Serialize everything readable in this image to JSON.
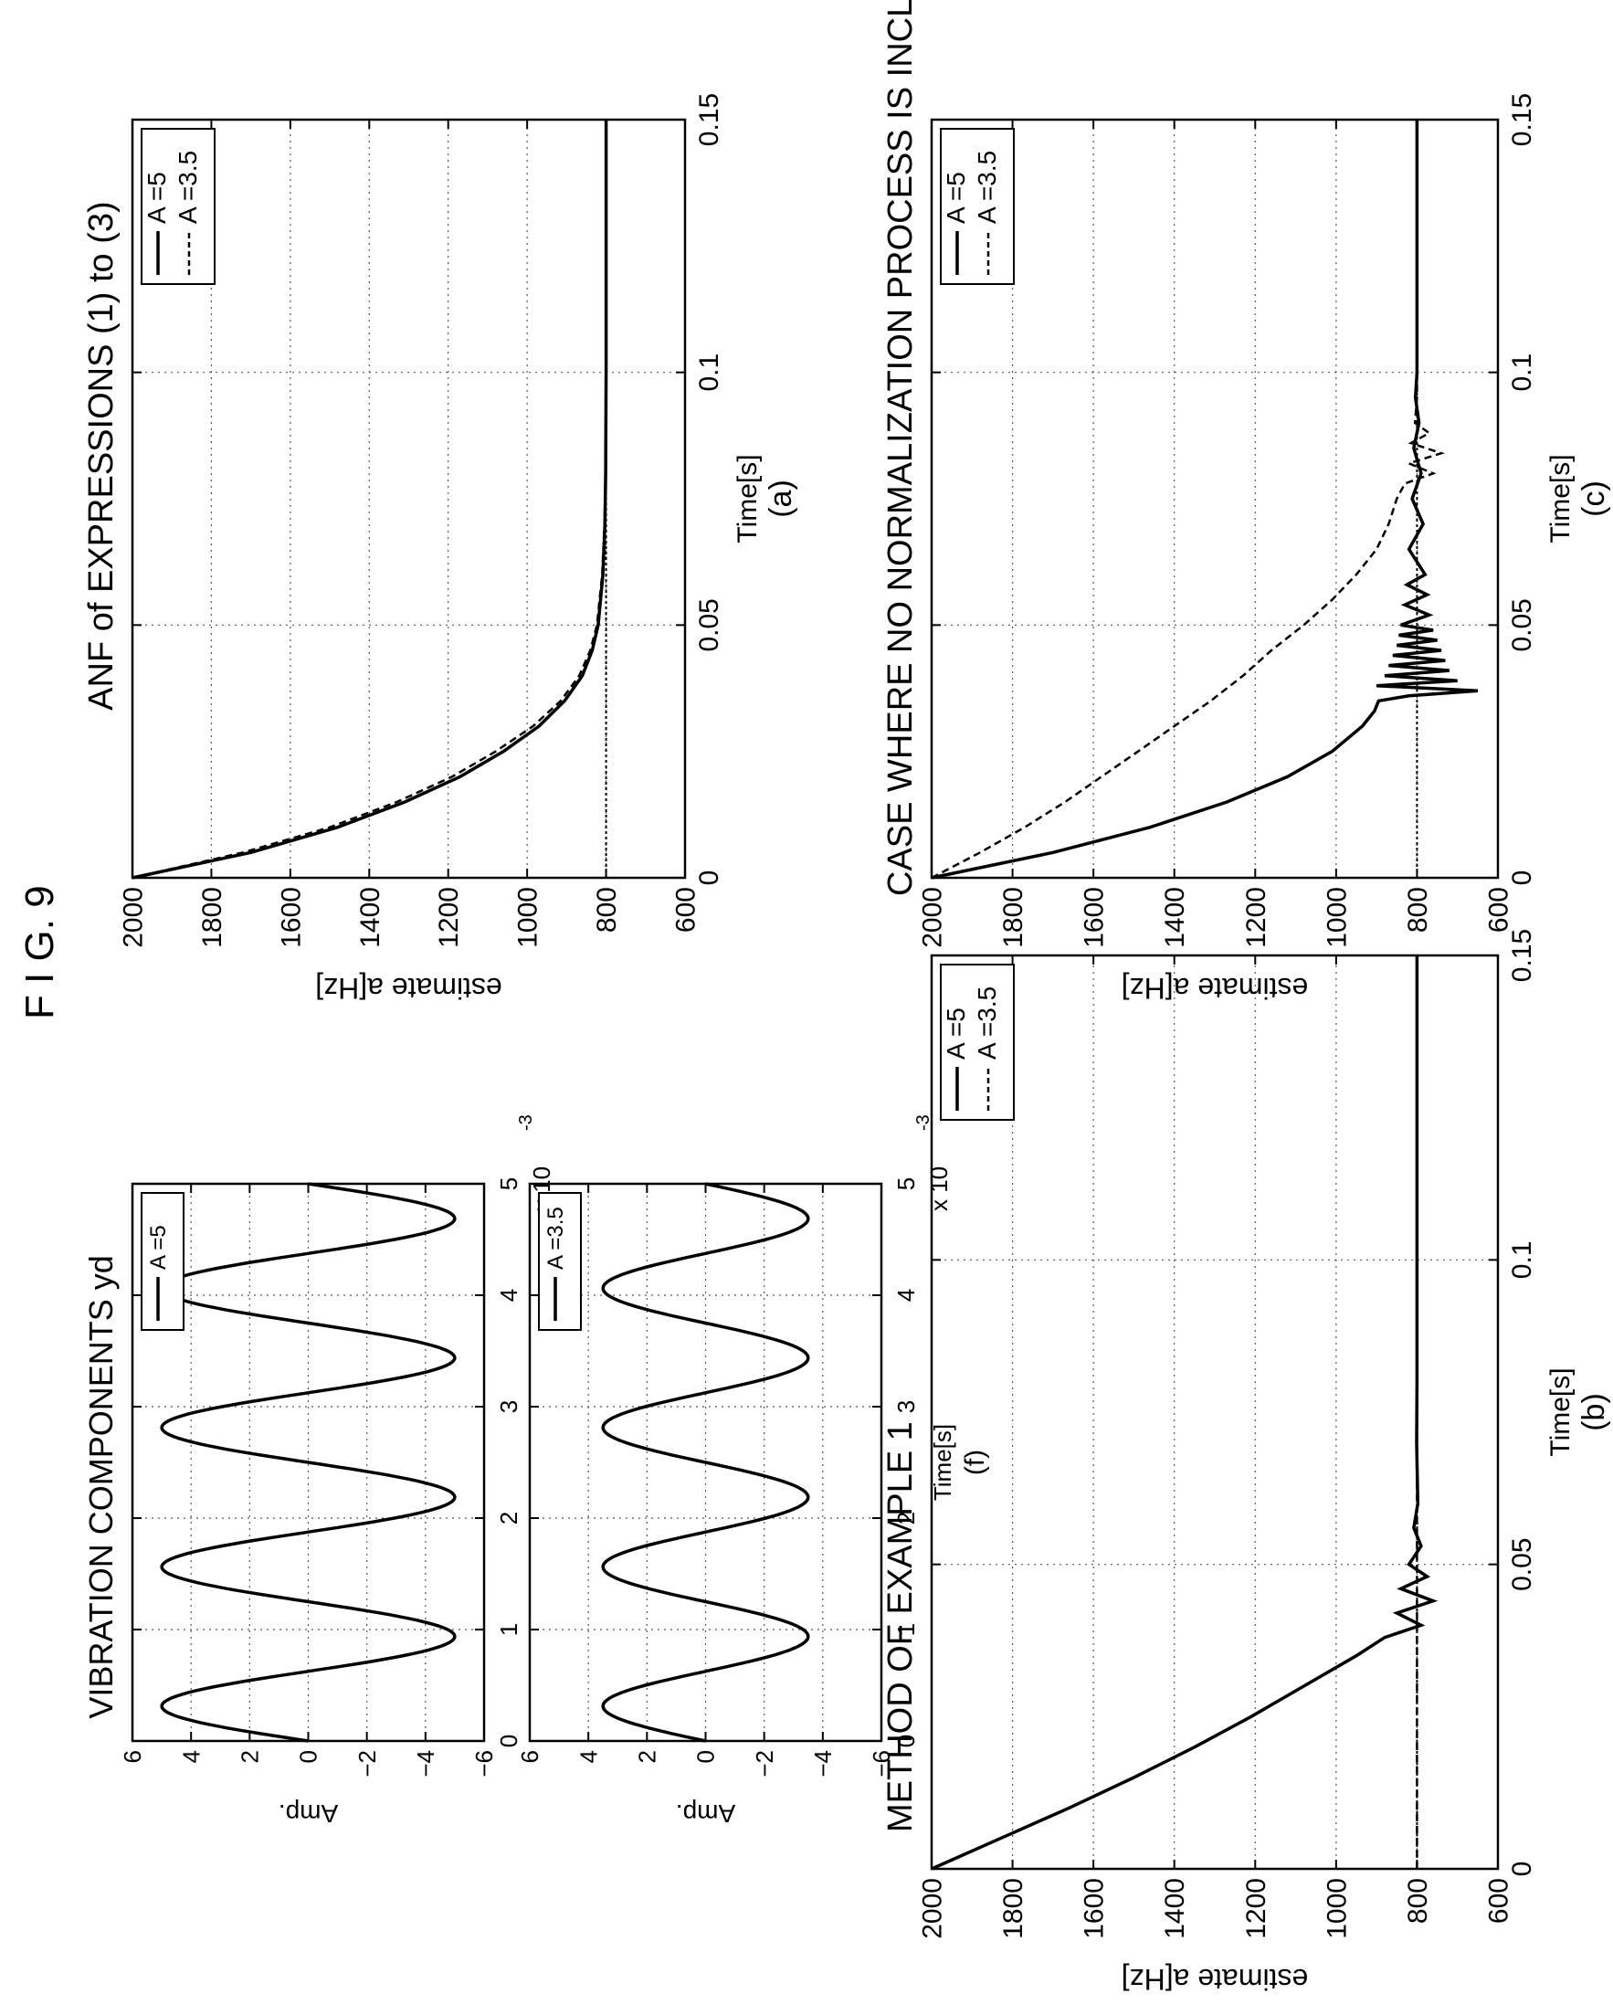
{
  "figure_label": "F I G. 9",
  "chart_data": [
    {
      "id": "f-top",
      "type": "line",
      "title": "VIBRATION COMPONENTS yd",
      "ylabel": "Amp.",
      "xlim": [
        0,
        0.005
      ],
      "ylim": [
        -6,
        6
      ],
      "xticks": [
        0,
        1,
        2,
        3,
        4,
        5
      ],
      "yticks": [
        6,
        4,
        2,
        0,
        -2,
        -4,
        -6
      ],
      "ytick_labels": [
        "6",
        "4",
        "2",
        "0",
        "−2",
        "−4",
        "−6"
      ],
      "xscale_label": "x 10",
      "xscale_exp": "-3",
      "grid": true,
      "legend": {
        "position": "top-right",
        "entries": [
          "A =5"
        ]
      },
      "series": [
        {
          "name": "A =5",
          "style": "solid",
          "amplitude": 5,
          "frequency_hz": 800,
          "x": [
            0,
            0.00031,
            0.00094,
            0.00156,
            0.00219,
            0.00281,
            0.00344,
            0.00406,
            0.00469,
            0.005
          ],
          "y": [
            0,
            5,
            -5,
            5,
            -5,
            5,
            -5,
            5,
            -5,
            0
          ]
        }
      ]
    },
    {
      "id": "f-bottom",
      "type": "line",
      "title": "",
      "ylabel": "Amp.",
      "xlabel": "Time[s]",
      "caption": "(f)",
      "xlim": [
        0,
        0.005
      ],
      "ylim": [
        -6,
        6
      ],
      "xticks": [
        0,
        1,
        2,
        3,
        4,
        5
      ],
      "yticks": [
        6,
        4,
        2,
        0,
        -2,
        -4,
        -6
      ],
      "ytick_labels": [
        "6",
        "4",
        "2",
        "0",
        "−2",
        "−4",
        "−6"
      ],
      "xscale_label": "x 10",
      "xscale_exp": "-3",
      "grid": true,
      "legend": {
        "position": "top-right",
        "entries": [
          "A =3.5"
        ]
      },
      "series": [
        {
          "name": "A =3.5",
          "style": "solid",
          "amplitude": 3.5,
          "frequency_hz": 800,
          "x": [
            0,
            0.00031,
            0.00094,
            0.00156,
            0.00219,
            0.00281,
            0.00344,
            0.00406,
            0.00469,
            0.005
          ],
          "y": [
            0,
            3.5,
            -3.5,
            3.5,
            -3.5,
            3.5,
            -3.5,
            3.5,
            -3.5,
            0
          ]
        }
      ]
    },
    {
      "id": "a",
      "type": "line",
      "title": "ANF of EXPRESSIONS (1) to (3)",
      "ylabel": "estimate a[Hz]",
      "xlabel": "Time[s]",
      "caption": "(a)",
      "xlim": [
        0,
        0.15
      ],
      "ylim": [
        600,
        2000
      ],
      "xticks": [
        0,
        0.05,
        0.1,
        0.15
      ],
      "xtick_labels": [
        "0",
        "0.05",
        "0.1",
        "0.15"
      ],
      "yticks": [
        2000,
        1800,
        1600,
        1400,
        1200,
        1000,
        800,
        600
      ],
      "grid": true,
      "legend": {
        "position": "top-right",
        "entries": [
          "A =5",
          "A =3.5"
        ]
      },
      "reference_line": 800,
      "series": [
        {
          "name": "A =5",
          "style": "solid",
          "x": [
            0,
            0.005,
            0.01,
            0.015,
            0.02,
            0.025,
            0.03,
            0.035,
            0.04,
            0.045,
            0.05,
            0.06,
            0.07,
            0.08,
            0.1,
            0.15
          ],
          "y": [
            2000,
            1700,
            1480,
            1310,
            1170,
            1060,
            970,
            905,
            860,
            835,
            820,
            808,
            803,
            801,
            800,
            800
          ]
        },
        {
          "name": "A =3.5",
          "style": "dashed",
          "x": [
            0,
            0.005,
            0.01,
            0.015,
            0.02,
            0.025,
            0.03,
            0.035,
            0.04,
            0.045,
            0.05,
            0.06,
            0.07,
            0.08,
            0.1,
            0.15
          ],
          "y": [
            2000,
            1720,
            1500,
            1330,
            1190,
            1080,
            985,
            915,
            868,
            840,
            823,
            810,
            804,
            801,
            800,
            800
          ]
        }
      ]
    },
    {
      "id": "b",
      "type": "line",
      "title": "METHOD OF EXAMPLE 1",
      "ylabel": "estimate a[Hz]",
      "xlabel": "Time[s]",
      "caption": "(b)",
      "xlim": [
        0,
        0.15
      ],
      "ylim": [
        600,
        2000
      ],
      "xticks": [
        0,
        0.05,
        0.1,
        0.15
      ],
      "xtick_labels": [
        "0",
        "0.05",
        "0.1",
        "0.15"
      ],
      "yticks": [
        2000,
        1800,
        1600,
        1400,
        1200,
        1000,
        800,
        600
      ],
      "grid": true,
      "legend": {
        "position": "top-right",
        "entries": [
          "A =5",
          "A =3.5"
        ]
      },
      "reference_line": 800,
      "series": [
        {
          "name": "A =5",
          "style": "solid",
          "x": [
            0,
            0.005,
            0.01,
            0.015,
            0.02,
            0.025,
            0.03,
            0.035,
            0.038,
            0.04,
            0.042,
            0.044,
            0.046,
            0.048,
            0.05,
            0.053,
            0.056,
            0.06,
            0.07,
            0.08,
            0.1,
            0.15
          ],
          "y": [
            2000,
            1830,
            1660,
            1500,
            1350,
            1210,
            1080,
            950,
            880,
            790,
            850,
            760,
            840,
            775,
            820,
            790,
            808,
            798,
            801,
            800,
            800,
            800
          ]
        },
        {
          "name": "A =3.5",
          "style": "dashed",
          "x": [
            0,
            0.15
          ],
          "y": [
            800,
            800
          ]
        }
      ]
    },
    {
      "id": "c",
      "type": "line",
      "title": "CASE WHERE NO NORMALIZATION PROCESS IS INCLUDED",
      "ylabel": "estimate a[Hz]",
      "xlabel": "Time[s]",
      "caption": "(c)",
      "xlim": [
        0,
        0.15
      ],
      "ylim": [
        600,
        2000
      ],
      "xticks": [
        0,
        0.05,
        0.1,
        0.15
      ],
      "xtick_labels": [
        "0",
        "0.05",
        "0.1",
        "0.15"
      ],
      "yticks": [
        2000,
        1800,
        1600,
        1400,
        1200,
        1000,
        800,
        600
      ],
      "grid": true,
      "legend": {
        "position": "top-right",
        "entries": [
          "A =5",
          "A =3.5"
        ]
      },
      "reference_line": 800,
      "series": [
        {
          "name": "A =5",
          "style": "solid",
          "x": [
            0,
            0.005,
            0.01,
            0.015,
            0.02,
            0.025,
            0.03,
            0.033,
            0.035,
            0.036,
            0.037,
            0.038,
            0.039,
            0.04,
            0.041,
            0.042,
            0.043,
            0.044,
            0.045,
            0.046,
            0.047,
            0.048,
            0.049,
            0.05,
            0.052,
            0.054,
            0.056,
            0.058,
            0.06,
            0.065,
            0.07,
            0.075,
            0.08,
            0.085,
            0.09,
            0.095,
            0.1,
            0.15
          ],
          "y": [
            2000,
            1700,
            1460,
            1270,
            1120,
            1010,
            935,
            905,
            895,
            820,
            650,
            900,
            700,
            880,
            720,
            870,
            730,
            860,
            740,
            850,
            750,
            845,
            760,
            840,
            770,
            830,
            775,
            825,
            780,
            820,
            785,
            812,
            790,
            808,
            795,
            804,
            800,
            800
          ]
        },
        {
          "name": "A =3.5",
          "style": "dashed",
          "x": [
            0,
            0.005,
            0.01,
            0.015,
            0.02,
            0.025,
            0.03,
            0.035,
            0.04,
            0.045,
            0.05,
            0.055,
            0.06,
            0.065,
            0.07,
            0.075,
            0.078,
            0.08,
            0.082,
            0.084,
            0.086,
            0.088,
            0.09,
            0.095,
            0.1,
            0.15
          ],
          "y": [
            2000,
            1880,
            1770,
            1670,
            1580,
            1490,
            1400,
            1310,
            1230,
            1160,
            1080,
            1010,
            950,
            900,
            870,
            850,
            830,
            760,
            820,
            740,
            815,
            770,
            805,
            800,
            800,
            800
          ]
        }
      ]
    }
  ]
}
